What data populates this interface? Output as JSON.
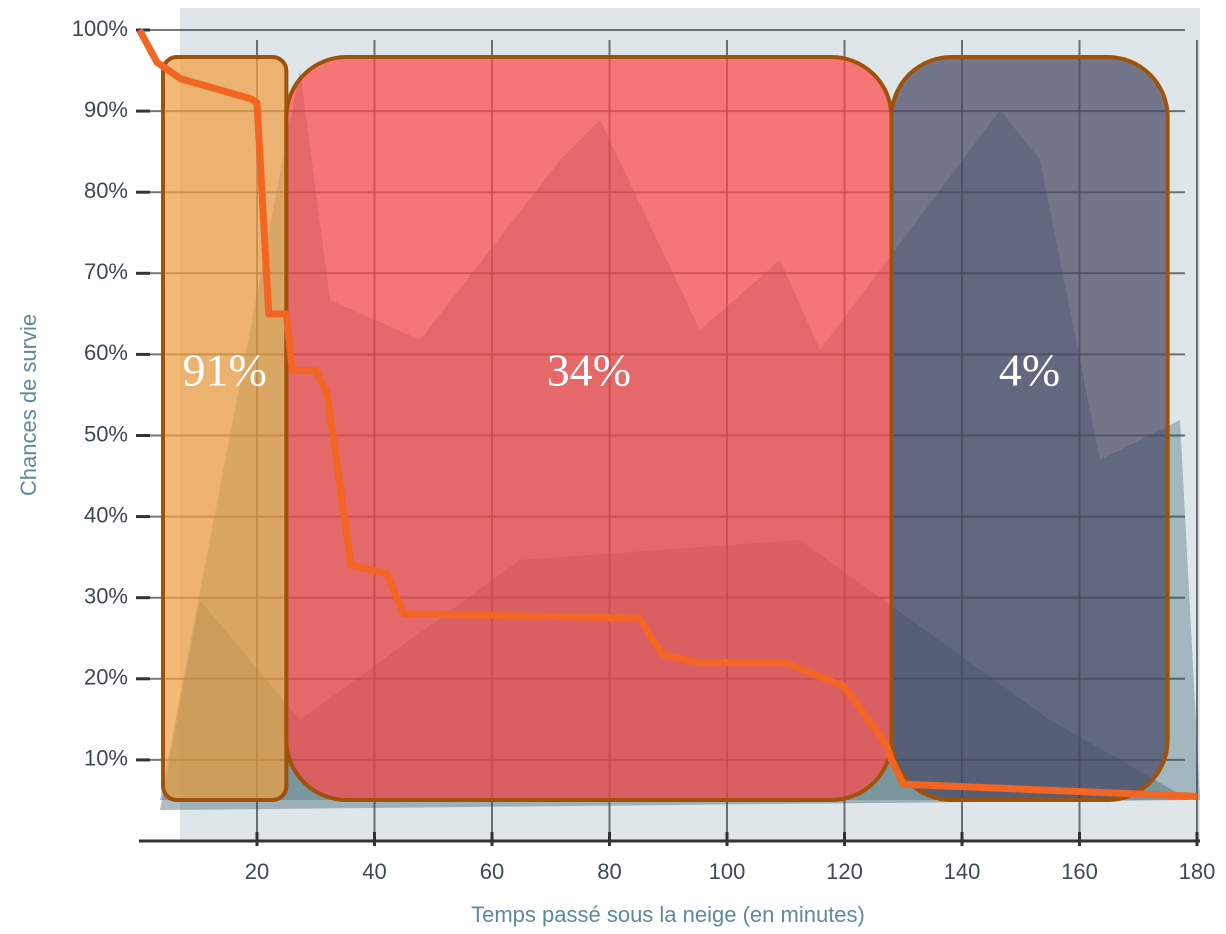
{
  "chart_data": {
    "type": "line",
    "x_label": "Temps passé sous la neige (en minutes)",
    "y_label": "Chances de survie",
    "xlim": [
      0,
      180
    ],
    "ylim": [
      0,
      100
    ],
    "xticks": [
      20,
      40,
      60,
      80,
      100,
      120,
      140,
      160,
      180
    ],
    "yticks": [
      {
        "value": 10,
        "label": "10%"
      },
      {
        "value": 20,
        "label": "20%"
      },
      {
        "value": 30,
        "label": "30%"
      },
      {
        "value": 40,
        "label": "40%"
      },
      {
        "value": 50,
        "label": "50%"
      },
      {
        "value": 60,
        "label": "60%"
      },
      {
        "value": 70,
        "label": "70%"
      },
      {
        "value": 80,
        "label": "80%"
      },
      {
        "value": 90,
        "label": "90%"
      },
      {
        "value": 100,
        "label": "100%"
      }
    ],
    "grid": true,
    "series": [
      {
        "color": "#f26522",
        "x": [
          0,
          3,
          7,
          19,
          20,
          22,
          25,
          26,
          30,
          32,
          36,
          42,
          45,
          85,
          89,
          95,
          110,
          120,
          127,
          128,
          130,
          180
        ],
        "values": [
          100,
          96,
          94,
          91.5,
          91,
          65,
          65,
          58,
          58,
          55,
          34,
          33,
          28,
          27.5,
          23,
          22,
          22,
          19,
          12,
          10,
          7,
          5.5
        ]
      }
    ],
    "regions": [
      {
        "label": "91%",
        "color": "#f0a040",
        "x_start": 4,
        "x_end": 25
      },
      {
        "label": "34%",
        "color": "#ff4a4a",
        "x_start": 25,
        "x_end": 128
      },
      {
        "label": "4%",
        "color": "#4a4a66",
        "x_start": 128,
        "x_end": 175
      }
    ]
  }
}
